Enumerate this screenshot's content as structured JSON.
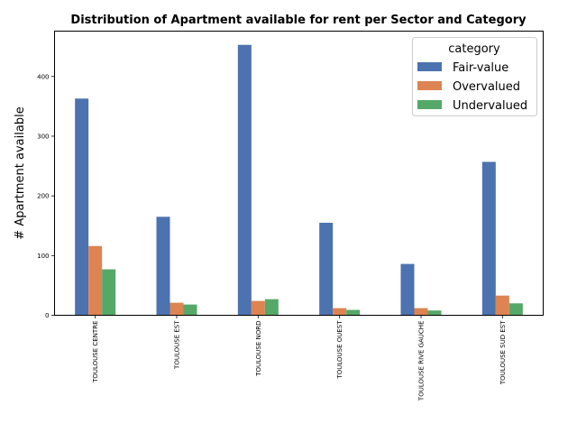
{
  "chart_data": {
    "type": "bar",
    "title": "Distribution of Apartment available for rent per Sector and Category",
    "xlabel": "",
    "ylabel": "# Apartment available",
    "ylim": [
      0,
      476
    ],
    "yticks": [
      0,
      100,
      200,
      300,
      400
    ],
    "categories": [
      "TOULOUSE CENTRE",
      "TOULOUSE EST",
      "TOULOUSE NORD",
      "TOULOUSE OUEST",
      "TOULOUSE RIVE GAUCHE",
      "TOULOUSE SUD EST"
    ],
    "series": [
      {
        "name": "Fair-value",
        "color": "#4c72b0",
        "values": [
          363,
          165,
          453,
          155,
          86,
          257
        ]
      },
      {
        "name": "Overvalued",
        "color": "#dd8452",
        "values": [
          116,
          21,
          24,
          12,
          12,
          33
        ]
      },
      {
        "name": "Undervalued",
        "color": "#55a868",
        "values": [
          77,
          18,
          27,
          9,
          8,
          20
        ]
      }
    ],
    "legend": {
      "title": "category",
      "position": "top-right"
    },
    "grid": false
  }
}
